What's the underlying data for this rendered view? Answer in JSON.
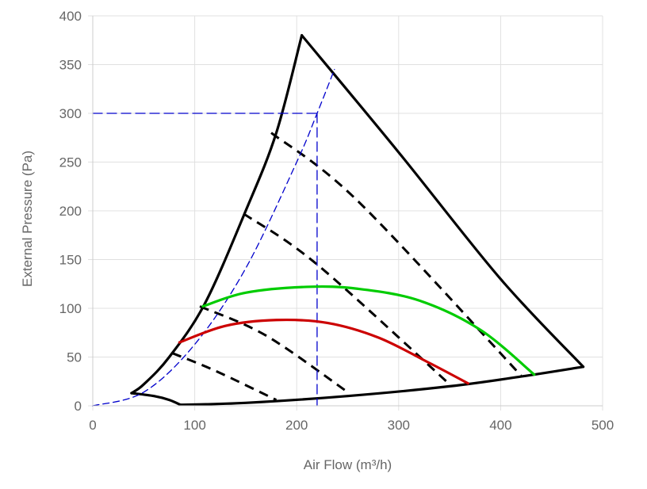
{
  "chart_data": {
    "type": "line",
    "title": "",
    "xlabel": "Air Flow (m³/h)",
    "ylabel": "External Pressure (Pa)",
    "xlim": [
      0,
      500
    ],
    "ylim": [
      0,
      400
    ],
    "x_ticks": [
      0,
      100,
      200,
      300,
      400,
      500
    ],
    "y_ticks": [
      0,
      50,
      100,
      150,
      200,
      250,
      300,
      350,
      400
    ],
    "grid": true,
    "colors": {
      "envelope": "#000000",
      "dashed_black": "#000000",
      "system_curve": "#0000cc",
      "green_curve": "#00cc00",
      "red_curve": "#cc0000",
      "grid": "#e0e0e0",
      "tick_text": "#666666"
    },
    "series": [
      {
        "name": "envelope-left",
        "style": "solid",
        "color": "#000000",
        "points": [
          [
            38,
            13
          ],
          [
            50,
            22
          ],
          [
            75,
            50
          ],
          [
            110,
            105
          ],
          [
            150,
            200
          ],
          [
            180,
            280
          ],
          [
            205,
            380
          ]
        ]
      },
      {
        "name": "envelope-top",
        "style": "solid",
        "color": "#000000",
        "points": [
          [
            205,
            380
          ],
          [
            300,
            260
          ],
          [
            400,
            130
          ],
          [
            481,
            40
          ]
        ]
      },
      {
        "name": "envelope-bottom",
        "style": "solid",
        "color": "#000000",
        "points": [
          [
            86,
            1
          ],
          [
            150,
            3
          ],
          [
            250,
            10
          ],
          [
            350,
            20
          ],
          [
            420,
            30
          ],
          [
            481,
            40
          ]
        ]
      },
      {
        "name": "envelope-low-left",
        "style": "solid",
        "color": "#000000",
        "points": [
          [
            38,
            13
          ],
          [
            60,
            10
          ],
          [
            75,
            6
          ],
          [
            86,
            1
          ]
        ]
      },
      {
        "name": "dashed-1",
        "style": "dashed",
        "color": "#000000",
        "points": [
          [
            78,
            54
          ],
          [
            120,
            36
          ],
          [
            180,
            6
          ]
        ]
      },
      {
        "name": "dashed-2",
        "style": "dashed",
        "color": "#000000",
        "points": [
          [
            105,
            102
          ],
          [
            170,
            72
          ],
          [
            250,
            14
          ]
        ]
      },
      {
        "name": "dashed-3",
        "style": "dashed",
        "color": "#000000",
        "points": [
          [
            148,
            197
          ],
          [
            220,
            145
          ],
          [
            350,
            22
          ]
        ]
      },
      {
        "name": "dashed-4",
        "style": "dashed",
        "color": "#000000",
        "points": [
          [
            175,
            280
          ],
          [
            260,
            210
          ],
          [
            420,
            31
          ]
        ]
      },
      {
        "name": "system-curve",
        "style": "dashed-thin",
        "color": "#0000cc",
        "points": [
          [
            0,
            0
          ],
          [
            50,
            14
          ],
          [
            100,
            63
          ],
          [
            150,
            141
          ],
          [
            200,
            250
          ],
          [
            220,
            300
          ],
          [
            237,
            345
          ]
        ]
      },
      {
        "name": "selected-point-h",
        "style": "dashed-guide",
        "color": "#0000cc",
        "points": [
          [
            0,
            300
          ],
          [
            220,
            300
          ]
        ]
      },
      {
        "name": "selected-point-v",
        "style": "dashed-guide",
        "color": "#0000cc",
        "points": [
          [
            220,
            300
          ],
          [
            220,
            0
          ]
        ]
      },
      {
        "name": "green-curve",
        "style": "solid",
        "color": "#00cc00",
        "points": [
          [
            108,
            102
          ],
          [
            150,
            116
          ],
          [
            210,
            122
          ],
          [
            260,
            120
          ],
          [
            320,
            108
          ],
          [
            380,
            78
          ],
          [
            433,
            32
          ]
        ]
      },
      {
        "name": "red-curve",
        "style": "solid",
        "color": "#cc0000",
        "points": [
          [
            85,
            65
          ],
          [
            130,
            82
          ],
          [
            180,
            88
          ],
          [
            230,
            85
          ],
          [
            280,
            70
          ],
          [
            330,
            44
          ],
          [
            368,
            23
          ]
        ]
      }
    ]
  }
}
